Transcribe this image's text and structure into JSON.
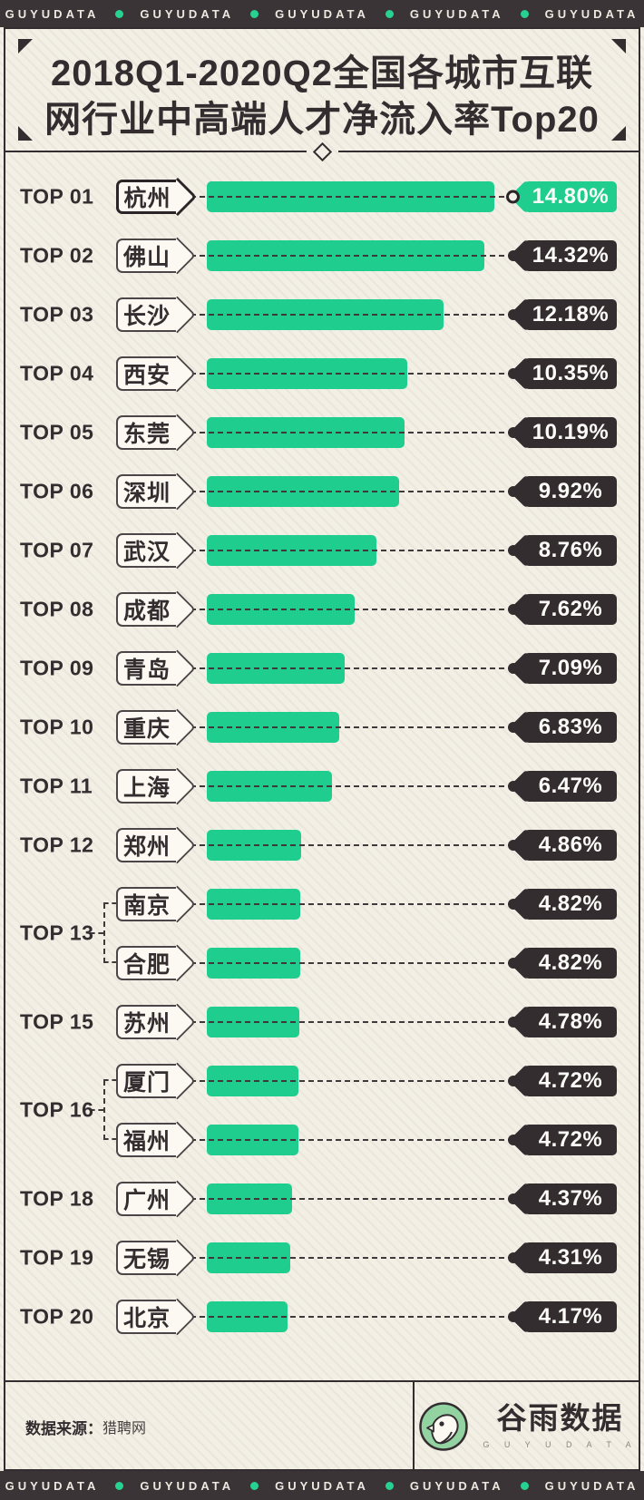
{
  "topbar": {
    "brand": "GUYUDATA"
  },
  "title": {
    "line1": "2018Q1-2020Q2全国各城市互联",
    "line2": "网行业中高端人才净流入率Top20"
  },
  "rows": [
    {
      "rank": "TOP 01",
      "city": "杭州",
      "label": "14.80%",
      "value": 14.8,
      "highlight": true
    },
    {
      "rank": "TOP 02",
      "city": "佛山",
      "label": "14.32%",
      "value": 14.32
    },
    {
      "rank": "TOP 03",
      "city": "长沙",
      "label": "12.18%",
      "value": 12.18
    },
    {
      "rank": "TOP 04",
      "city": "西安",
      "label": "10.35%",
      "value": 10.35
    },
    {
      "rank": "TOP 05",
      "city": "东莞",
      "label": "10.19%",
      "value": 10.19
    },
    {
      "rank": "TOP 06",
      "city": "深圳",
      "label": "9.92%",
      "value": 9.92
    },
    {
      "rank": "TOP 07",
      "city": "武汉",
      "label": "8.76%",
      "value": 8.76
    },
    {
      "rank": "TOP 08",
      "city": "成都",
      "label": "7.62%",
      "value": 7.62
    },
    {
      "rank": "TOP 09",
      "city": "青岛",
      "label": "7.09%",
      "value": 7.09
    },
    {
      "rank": "TOP 10",
      "city": "重庆",
      "label": "6.83%",
      "value": 6.83
    },
    {
      "rank": "TOP 11",
      "city": "上海",
      "label": "6.47%",
      "value": 6.47
    },
    {
      "rank": "TOP 12",
      "city": "郑州",
      "label": "4.86%",
      "value": 4.86
    },
    {
      "rank": "TOP 13",
      "city": "南京",
      "label": "4.82%",
      "value": 4.82,
      "grouped": true
    },
    {
      "rank": "TOP 13",
      "city": "合肥",
      "label": "4.82%",
      "value": 4.82,
      "grouped": true
    },
    {
      "rank": "TOP 15",
      "city": "苏州",
      "label": "4.78%",
      "value": 4.78
    },
    {
      "rank": "TOP 16",
      "city": "厦门",
      "label": "4.72%",
      "value": 4.72,
      "grouped": true
    },
    {
      "rank": "TOP 16",
      "city": "福州",
      "label": "4.72%",
      "value": 4.72,
      "grouped": true
    },
    {
      "rank": "TOP 18",
      "city": "广州",
      "label": "4.37%",
      "value": 4.37
    },
    {
      "rank": "TOP 19",
      "city": "无锡",
      "label": "4.31%",
      "value": 4.31
    },
    {
      "rank": "TOP 20",
      "city": "北京",
      "label": "4.17%",
      "value": 4.17
    }
  ],
  "groups": [
    {
      "rank": "TOP 13"
    },
    {
      "rank": "TOP 16"
    }
  ],
  "footer": {
    "source_label": "数据来源：",
    "source": "猎聘网",
    "logo_text": "谷雨数据",
    "logo_subtext": "G U Y U D A T A"
  },
  "colors": {
    "green": "#1fce8e",
    "dark": "#332d30",
    "cream": "#f2efe5"
  },
  "chart_data": {
    "type": "bar",
    "orientation": "horizontal",
    "title": "2018Q1-2020Q2全国各城市互联网行业中高端人才净流入率Top20",
    "categories": [
      "杭州",
      "佛山",
      "长沙",
      "西安",
      "东莞",
      "深圳",
      "武汉",
      "成都",
      "青岛",
      "重庆",
      "上海",
      "郑州",
      "南京",
      "合肥",
      "苏州",
      "厦门",
      "福州",
      "广州",
      "无锡",
      "北京"
    ],
    "values": [
      14.8,
      14.32,
      12.18,
      10.35,
      10.19,
      9.92,
      8.76,
      7.62,
      7.09,
      6.83,
      6.47,
      4.86,
      4.82,
      4.82,
      4.78,
      4.72,
      4.72,
      4.37,
      4.31,
      4.17
    ],
    "ranks": [
      "TOP 01",
      "TOP 02",
      "TOP 03",
      "TOP 04",
      "TOP 05",
      "TOP 06",
      "TOP 07",
      "TOP 08",
      "TOP 09",
      "TOP 10",
      "TOP 11",
      "TOP 12",
      "TOP 13",
      "TOP 13",
      "TOP 15",
      "TOP 16",
      "TOP 16",
      "TOP 18",
      "TOP 19",
      "TOP 20"
    ],
    "unit": "%",
    "xlim": [
      0,
      15
    ],
    "data_labels": true,
    "legend": "none",
    "source": "猎聘网"
  }
}
